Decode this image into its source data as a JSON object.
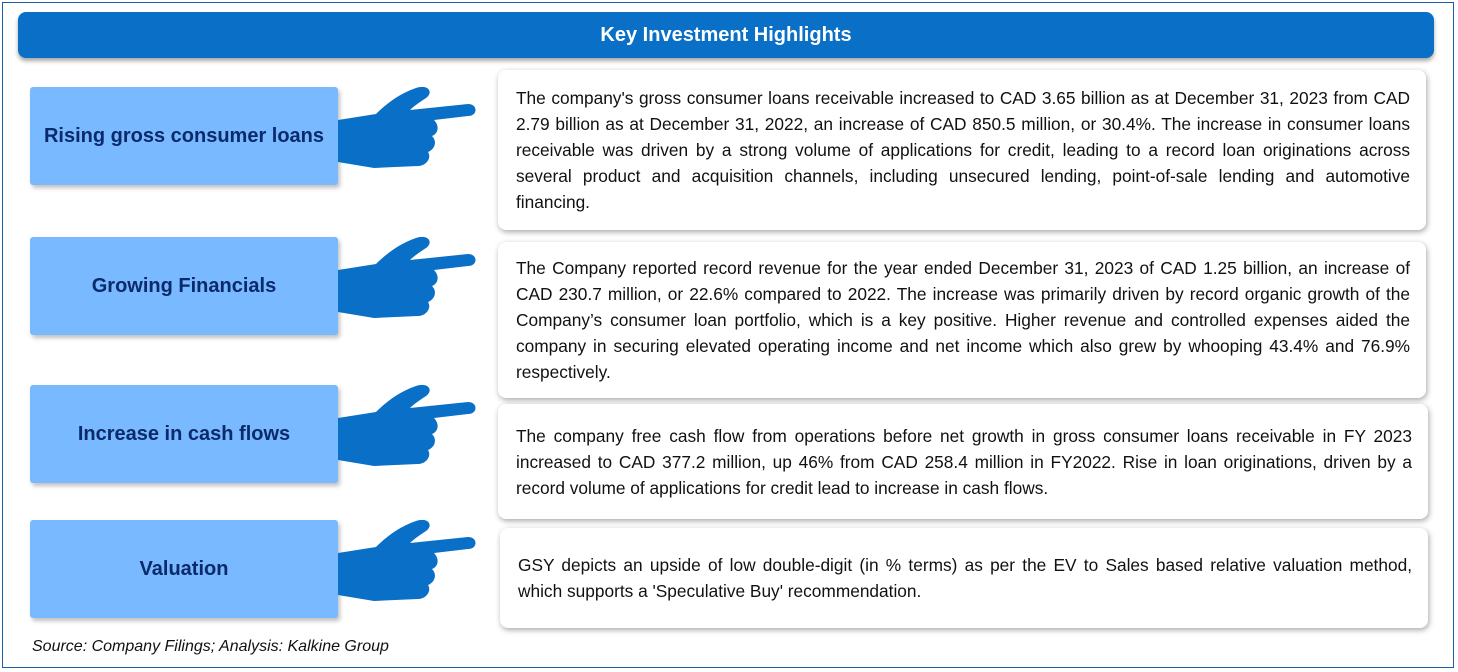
{
  "title": "Key Investment Highlights",
  "highlights": [
    {
      "label": "Rising gross consumer loans",
      "text": "The company's gross consumer loans receivable increased to CAD 3.65 billion as at December 31, 2023 from CAD 2.79 billion as at December 31, 2022, an increase of CAD 850.5 million, or 30.4%. The increase in consumer loans receivable was driven by a strong volume of applications for credit, leading to a record loan originations across several product and acquisition channels, including unsecured lending, point-of-sale lending and automotive financing."
    },
    {
      "label": "Growing Financials",
      "text": "The Company reported record revenue for the year ended December 31, 2023 of CAD 1.25 billion, an increase of CAD 230.7 million, or 22.6% compared to 2022. The increase was primarily driven by record organic growth of the Company’s consumer loan portfolio, which is a key positive. Higher revenue and controlled expenses aided the company in securing elevated operating income and net income which also grew by whooping 43.4% and 76.9% respectively."
    },
    {
      "label": "Increase in cash flows",
      "text": "The company free cash flow from operations before net growth in gross consumer loans receivable in FY 2023 increased to CAD 377.2 million, up 46% from CAD 258.4 million in FY2022. Rise in loan originations, driven by a record volume of applications for credit lead to increase in cash flows."
    },
    {
      "label": "Valuation",
      "text": "GSY depicts an upside of low double-digit (in % terms) as per the EV to Sales based relative valuation method, which supports a 'Speculative Buy' recommendation."
    }
  ],
  "source": "Source: Company Filings; Analysis: Kalkine Group",
  "colors": {
    "header": "#0a6fc6",
    "label_box": "#78b9ff",
    "label_text": "#0b2a6b",
    "hand": "#0a6fc6"
  }
}
